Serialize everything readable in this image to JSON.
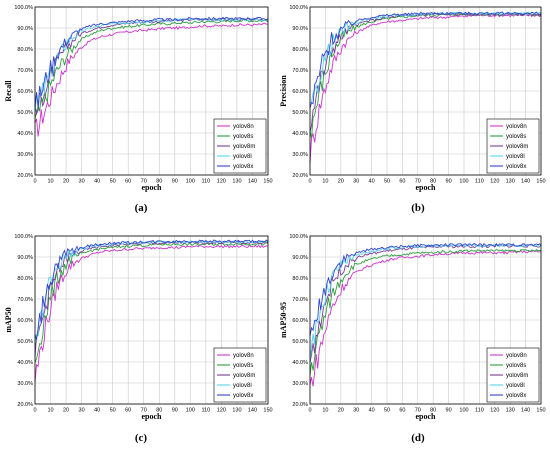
{
  "chart_data": [
    {
      "type": "line",
      "caption": "(a)",
      "xlabel": "epoch",
      "ylabel": "Recall",
      "xlim": [
        0,
        150
      ],
      "ylim": [
        0.2,
        1.0
      ],
      "xticks": [
        "0",
        "10",
        "20",
        "30",
        "40",
        "50",
        "60",
        "70",
        "80",
        "90",
        "100",
        "110",
        "120",
        "130",
        "140",
        "150"
      ],
      "yticks": [
        "20.0%",
        "30.0%",
        "40.0%",
        "50.0%",
        "60.0%",
        "70.0%",
        "80.0%",
        "90.0%",
        "100.0%"
      ],
      "grid": true,
      "legend_position": "bottom-right",
      "series": [
        {
          "name": "yolov8n",
          "color": "#cc33cc",
          "values": [
            0.4,
            0.52,
            0.64,
            0.74,
            0.8,
            0.84,
            0.86,
            0.87,
            0.88,
            0.885,
            0.89,
            0.895,
            0.9,
            0.9,
            0.905,
            0.91,
            0.91,
            0.91,
            0.915,
            0.915,
            0.915,
            0.92
          ]
        },
        {
          "name": "yolov8s",
          "color": "#2e9e3e",
          "values": [
            0.45,
            0.58,
            0.7,
            0.78,
            0.84,
            0.87,
            0.89,
            0.9,
            0.905,
            0.91,
            0.915,
            0.92,
            0.92,
            0.925,
            0.925,
            0.93,
            0.93,
            0.93,
            0.935,
            0.935,
            0.935,
            0.935
          ]
        },
        {
          "name": "yolov8m",
          "color": "#7a3c96",
          "values": [
            0.48,
            0.62,
            0.74,
            0.82,
            0.87,
            0.89,
            0.905,
            0.915,
            0.92,
            0.925,
            0.93,
            0.93,
            0.935,
            0.935,
            0.94,
            0.94,
            0.94,
            0.94,
            0.94,
            0.94,
            0.94,
            0.94
          ]
        },
        {
          "name": "yolov8l",
          "color": "#55d4e8",
          "values": [
            0.5,
            0.64,
            0.76,
            0.84,
            0.88,
            0.9,
            0.91,
            0.92,
            0.925,
            0.93,
            0.93,
            0.935,
            0.935,
            0.94,
            0.94,
            0.94,
            0.94,
            0.94,
            0.94,
            0.94,
            0.94,
            0.94
          ]
        },
        {
          "name": "yolov8x",
          "color": "#3344cc",
          "values": [
            0.52,
            0.66,
            0.78,
            0.85,
            0.89,
            0.91,
            0.92,
            0.925,
            0.93,
            0.935,
            0.935,
            0.94,
            0.94,
            0.94,
            0.945,
            0.945,
            0.945,
            0.945,
            0.945,
            0.945,
            0.945,
            0.945
          ]
        }
      ]
    },
    {
      "type": "line",
      "caption": "(b)",
      "xlabel": "epoch",
      "ylabel": "Precision",
      "xlim": [
        0,
        150
      ],
      "ylim": [
        0.2,
        1.0
      ],
      "xticks": [
        "0",
        "10",
        "20",
        "30",
        "40",
        "50",
        "60",
        "70",
        "80",
        "90",
        "100",
        "110",
        "120",
        "130",
        "140",
        "150"
      ],
      "yticks": [
        "20.0%",
        "30.0%",
        "40.0%",
        "50.0%",
        "60.0%",
        "70.0%",
        "80.0%",
        "90.0%",
        "100.0%"
      ],
      "grid": true,
      "legend_position": "bottom-right",
      "series": [
        {
          "name": "yolov8n",
          "color": "#cc33cc",
          "values": [
            0.3,
            0.55,
            0.72,
            0.82,
            0.87,
            0.9,
            0.92,
            0.93,
            0.935,
            0.94,
            0.945,
            0.95,
            0.95,
            0.955,
            0.955,
            0.96,
            0.96,
            0.96,
            0.96,
            0.96,
            0.96,
            0.96
          ]
        },
        {
          "name": "yolov8s",
          "color": "#2e9e3e",
          "values": [
            0.4,
            0.62,
            0.78,
            0.86,
            0.9,
            0.92,
            0.935,
            0.945,
            0.95,
            0.955,
            0.96,
            0.96,
            0.962,
            0.965,
            0.965,
            0.965,
            0.965,
            0.965,
            0.965,
            0.965,
            0.965,
            0.965
          ]
        },
        {
          "name": "yolov8m",
          "color": "#7a3c96",
          "values": [
            0.45,
            0.66,
            0.8,
            0.87,
            0.91,
            0.93,
            0.94,
            0.95,
            0.955,
            0.96,
            0.962,
            0.965,
            0.965,
            0.965,
            0.965,
            0.965,
            0.965,
            0.965,
            0.965,
            0.965,
            0.96,
            0.96
          ]
        },
        {
          "name": "yolov8l",
          "color": "#55d4e8",
          "values": [
            0.48,
            0.7,
            0.83,
            0.89,
            0.92,
            0.94,
            0.95,
            0.955,
            0.96,
            0.962,
            0.965,
            0.97,
            0.97,
            0.97,
            0.97,
            0.97,
            0.97,
            0.97,
            0.97,
            0.97,
            0.97,
            0.97
          ]
        },
        {
          "name": "yolov8x",
          "color": "#3344cc",
          "values": [
            0.5,
            0.72,
            0.85,
            0.9,
            0.93,
            0.945,
            0.955,
            0.96,
            0.965,
            0.965,
            0.97,
            0.97,
            0.97,
            0.97,
            0.97,
            0.97,
            0.97,
            0.97,
            0.97,
            0.97,
            0.97,
            0.97
          ]
        }
      ]
    },
    {
      "type": "line",
      "caption": "(c)",
      "xlabel": "epoch",
      "ylabel": "mAP50",
      "xlim": [
        0,
        150
      ],
      "ylim": [
        0.2,
        1.0
      ],
      "xticks": [
        "0",
        "10",
        "20",
        "30",
        "40",
        "50",
        "60",
        "70",
        "80",
        "90",
        "100",
        "110",
        "120",
        "130",
        "140",
        "150"
      ],
      "yticks": [
        "20.0%",
        "30.0%",
        "40.0%",
        "50.0%",
        "60.0%",
        "70.0%",
        "80.0%",
        "90.0%",
        "100.0%"
      ],
      "grid": true,
      "legend_position": "bottom-right",
      "series": [
        {
          "name": "yolov8n",
          "color": "#cc33cc",
          "values": [
            0.32,
            0.58,
            0.76,
            0.85,
            0.89,
            0.91,
            0.925,
            0.93,
            0.935,
            0.94,
            0.94,
            0.945,
            0.945,
            0.945,
            0.95,
            0.95,
            0.95,
            0.95,
            0.95,
            0.95,
            0.95,
            0.95
          ]
        },
        {
          "name": "yolov8s",
          "color": "#2e9e3e",
          "values": [
            0.4,
            0.64,
            0.8,
            0.88,
            0.91,
            0.93,
            0.94,
            0.945,
            0.95,
            0.955,
            0.955,
            0.96,
            0.96,
            0.96,
            0.96,
            0.96,
            0.96,
            0.962,
            0.962,
            0.962,
            0.962,
            0.962
          ]
        },
        {
          "name": "yolov8m",
          "color": "#7a3c96",
          "values": [
            0.45,
            0.68,
            0.83,
            0.9,
            0.925,
            0.94,
            0.95,
            0.955,
            0.96,
            0.962,
            0.965,
            0.965,
            0.965,
            0.968,
            0.968,
            0.968,
            0.968,
            0.968,
            0.968,
            0.968,
            0.968,
            0.968
          ]
        },
        {
          "name": "yolov8l",
          "color": "#55d4e8",
          "values": [
            0.48,
            0.72,
            0.86,
            0.91,
            0.935,
            0.95,
            0.958,
            0.962,
            0.965,
            0.968,
            0.97,
            0.97,
            0.972,
            0.972,
            0.972,
            0.972,
            0.972,
            0.972,
            0.972,
            0.972,
            0.972,
            0.972
          ]
        },
        {
          "name": "yolov8x",
          "color": "#3344cc",
          "values": [
            0.5,
            0.74,
            0.87,
            0.92,
            0.94,
            0.955,
            0.962,
            0.966,
            0.968,
            0.97,
            0.972,
            0.974,
            0.974,
            0.975,
            0.975,
            0.975,
            0.975,
            0.975,
            0.975,
            0.975,
            0.975,
            0.975
          ]
        }
      ]
    },
    {
      "type": "line",
      "caption": "(d)",
      "xlabel": "epoch",
      "ylabel": "mAP50-95",
      "xlim": [
        0,
        150
      ],
      "ylim": [
        0.2,
        1.0
      ],
      "xticks": [
        "0",
        "10",
        "20",
        "30",
        "40",
        "50",
        "60",
        "70",
        "80",
        "90",
        "100",
        "110",
        "120",
        "130",
        "140",
        "150"
      ],
      "yticks": [
        "20.0%",
        "30.0%",
        "40.0%",
        "50.0%",
        "60.0%",
        "70.0%",
        "80.0%",
        "90.0%",
        "100.0%"
      ],
      "grid": true,
      "legend_position": "bottom-right",
      "series": [
        {
          "name": "yolov8n",
          "color": "#cc33cc",
          "values": [
            0.28,
            0.48,
            0.66,
            0.76,
            0.82,
            0.85,
            0.87,
            0.885,
            0.895,
            0.9,
            0.905,
            0.91,
            0.915,
            0.915,
            0.92,
            0.92,
            0.92,
            0.92,
            0.92,
            0.925,
            0.925,
            0.925
          ]
        },
        {
          "name": "yolov8s",
          "color": "#2e9e3e",
          "values": [
            0.35,
            0.56,
            0.72,
            0.81,
            0.86,
            0.88,
            0.895,
            0.905,
            0.91,
            0.915,
            0.92,
            0.92,
            0.925,
            0.925,
            0.93,
            0.93,
            0.93,
            0.93,
            0.93,
            0.93,
            0.93,
            0.93
          ]
        },
        {
          "name": "yolov8m",
          "color": "#7a3c96",
          "values": [
            0.4,
            0.62,
            0.78,
            0.85,
            0.89,
            0.91,
            0.92,
            0.93,
            0.935,
            0.94,
            0.945,
            0.945,
            0.95,
            0.95,
            0.95,
            0.95,
            0.95,
            0.952,
            0.952,
            0.952,
            0.952,
            0.952
          ]
        },
        {
          "name": "yolov8l",
          "color": "#55d4e8",
          "values": [
            0.45,
            0.66,
            0.8,
            0.87,
            0.9,
            0.92,
            0.93,
            0.94,
            0.945,
            0.95,
            0.95,
            0.952,
            0.955,
            0.955,
            0.955,
            0.955,
            0.955,
            0.955,
            0.955,
            0.955,
            0.955,
            0.955
          ]
        },
        {
          "name": "yolov8x",
          "color": "#3344cc",
          "values": [
            0.48,
            0.7,
            0.83,
            0.89,
            0.915,
            0.93,
            0.94,
            0.945,
            0.95,
            0.952,
            0.955,
            0.955,
            0.958,
            0.958,
            0.958,
            0.958,
            0.958,
            0.958,
            0.958,
            0.958,
            0.958,
            0.958
          ]
        }
      ]
    }
  ]
}
